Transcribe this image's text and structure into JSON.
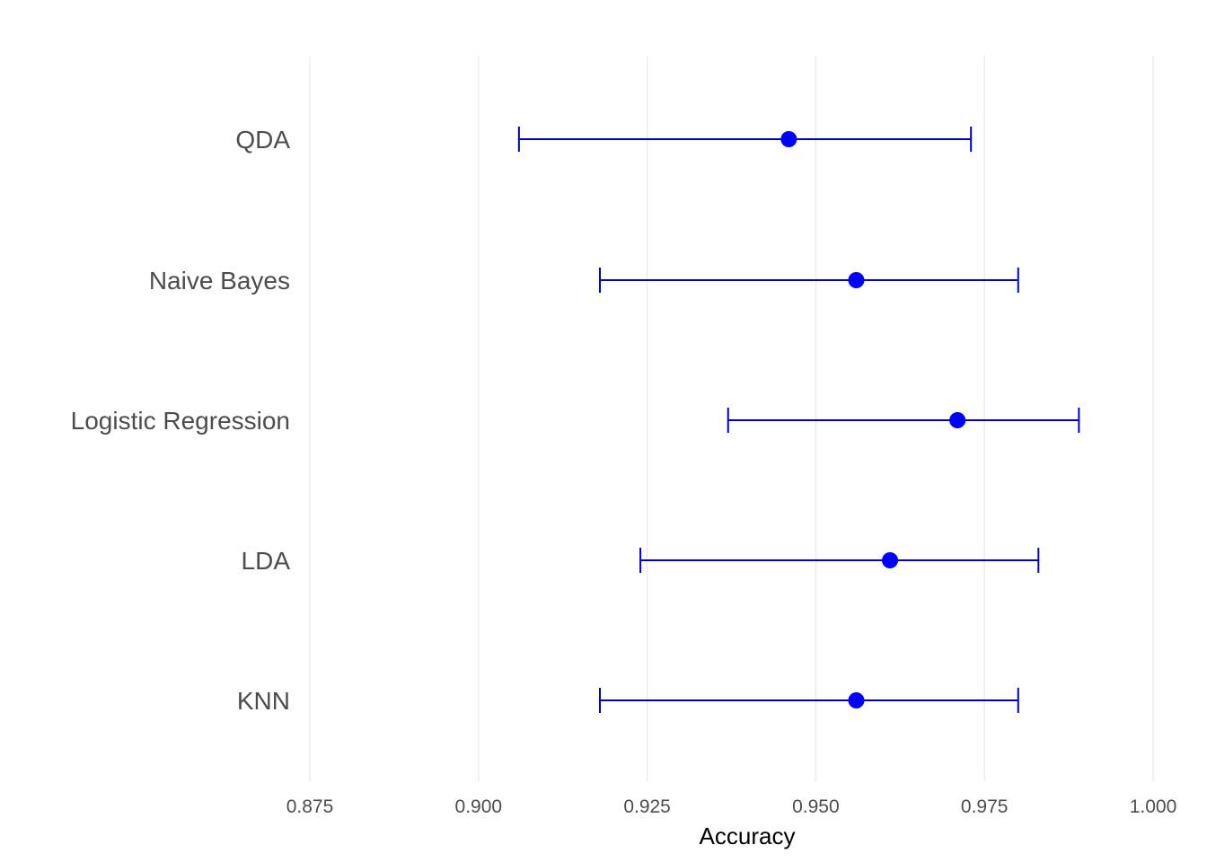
{
  "chart_data": {
    "type": "scatter",
    "subtype": "dot-with-error-bars",
    "title": "",
    "xlabel": "Accuracy",
    "ylabel": "",
    "xlim": [
      0.875,
      1.0
    ],
    "x_ticks": [
      0.875,
      0.9,
      0.925,
      0.95,
      0.975,
      1.0
    ],
    "x_tick_labels": [
      "0.875",
      "0.900",
      "0.925",
      "0.950",
      "0.975",
      "1.000"
    ],
    "grid": "vertical major lines",
    "legend": "none",
    "colors": {
      "point": "#0000ff",
      "errorbar": "#0000cd",
      "grid": "#ebebeb"
    },
    "categories": [
      "KNN",
      "LDA",
      "Logistic Regression",
      "Naive Bayes",
      "QDA"
    ],
    "series": [
      {
        "values": [
          0.956,
          0.961,
          0.971,
          0.956,
          0.946
        ],
        "lower": [
          0.918,
          0.924,
          0.937,
          0.918,
          0.906
        ],
        "upper": [
          0.98,
          0.983,
          0.989,
          0.98,
          0.973
        ]
      }
    ]
  }
}
